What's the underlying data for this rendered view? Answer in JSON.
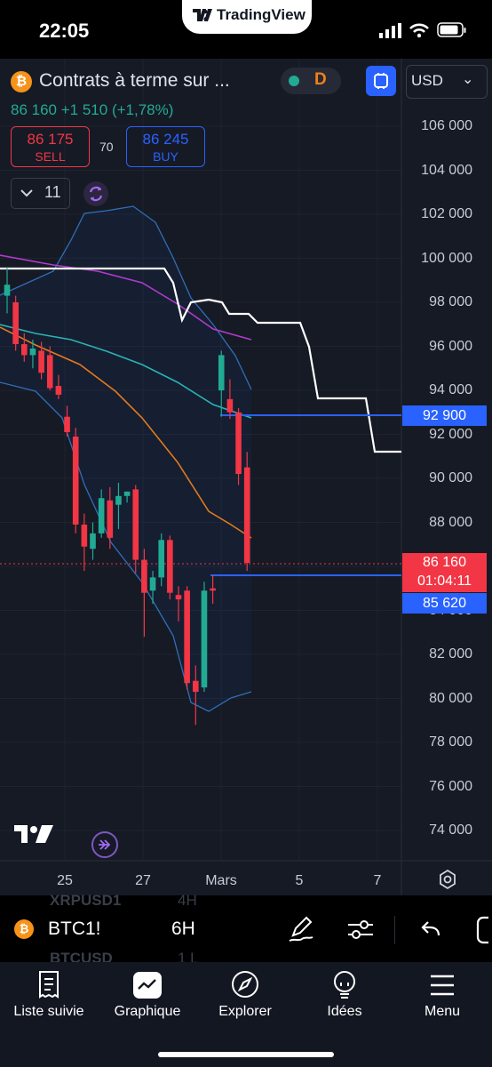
{
  "status_bar": {
    "time": "22:05",
    "app_banner": "TradingView"
  },
  "header": {
    "symbol_title": "Contrats à terme sur ...",
    "session_badge": "D",
    "currency": "USD",
    "last_price": "86 160",
    "change": "+1 510",
    "change_pct": "(+1,78%)",
    "sell_price": "86 175",
    "sell_label": "SELL",
    "spread": "70",
    "buy_price": "86 245",
    "buy_label": "BUY",
    "indicator_count": "11"
  },
  "price_axis": {
    "labels": [
      "106 000",
      "104 000",
      "102 000",
      "100 000",
      "98 000",
      "96 000",
      "94 000",
      "92 000",
      "90 000",
      "88 000",
      "86 000",
      "84 000",
      "82 000",
      "80 000",
      "78 000",
      "76 000",
      "74 000"
    ]
  },
  "price_tags": {
    "upper_line": "92 900",
    "current_price": "86 160",
    "countdown": "01:04:11",
    "lower_line": "85 620"
  },
  "time_axis": {
    "labels": [
      "25",
      "27",
      "Mars",
      "5",
      "7"
    ]
  },
  "toolbar": {
    "symbol": "BTC1!",
    "interval": "6H",
    "ghost_symbol_1": "XRPUSD1",
    "ghost_interval_1": "4H",
    "ghost_symbol_2": "BTCUSD",
    "ghost_interval_2": "1 L"
  },
  "nav": {
    "watchlist": "Liste suivie",
    "chart": "Graphique",
    "explore": "Explorer",
    "ideas": "Idées",
    "menu": "Menu"
  },
  "colors": {
    "up": "#22ab94",
    "down": "#f23645",
    "accent": "#2962ff",
    "bg": "#161a25",
    "btc": "#f7931a",
    "badge": "#f57f17"
  },
  "candles": [
    {
      "o": 98300,
      "h": 99600,
      "l": 97500,
      "c": 98800
    },
    {
      "o": 98000,
      "h": 98300,
      "l": 95800,
      "c": 96100
    },
    {
      "o": 96100,
      "h": 96600,
      "l": 95300,
      "c": 95600
    },
    {
      "o": 95600,
      "h": 96300,
      "l": 95000,
      "c": 95900
    },
    {
      "o": 95800,
      "h": 96200,
      "l": 94500,
      "c": 94800
    },
    {
      "o": 95600,
      "h": 96000,
      "l": 94000,
      "c": 94100
    },
    {
      "o": 94200,
      "h": 94700,
      "l": 93600,
      "c": 93800
    },
    {
      "o": 92800,
      "h": 93300,
      "l": 91900,
      "c": 92100
    },
    {
      "o": 91900,
      "h": 92300,
      "l": 87500,
      "c": 87900
    },
    {
      "o": 87900,
      "h": 88400,
      "l": 85800,
      "c": 86900
    },
    {
      "o": 86800,
      "h": 88000,
      "l": 86300,
      "c": 87500
    },
    {
      "o": 87500,
      "h": 89500,
      "l": 87300,
      "c": 89100
    },
    {
      "o": 89000,
      "h": 89600,
      "l": 86800,
      "c": 87300
    },
    {
      "o": 88800,
      "h": 89800,
      "l": 87700,
      "c": 89200
    },
    {
      "o": 89200,
      "h": 89400,
      "l": 88900,
      "c": 89400
    },
    {
      "o": 89500,
      "h": 89700,
      "l": 85700,
      "c": 86300
    },
    {
      "o": 86300,
      "h": 86800,
      "l": 82800,
      "c": 84800
    },
    {
      "o": 84900,
      "h": 85800,
      "l": 84300,
      "c": 85500
    },
    {
      "o": 85500,
      "h": 87500,
      "l": 85100,
      "c": 87200
    },
    {
      "o": 87200,
      "h": 87400,
      "l": 84500,
      "c": 84800
    },
    {
      "o": 84700,
      "h": 85100,
      "l": 83500,
      "c": 84500
    },
    {
      "o": 84900,
      "h": 85100,
      "l": 80400,
      "c": 80700
    },
    {
      "o": 80800,
      "h": 81500,
      "l": 78800,
      "c": 80300
    },
    {
      "o": 80500,
      "h": 85300,
      "l": 80300,
      "c": 84900
    },
    {
      "o": 85000,
      "h": 85600,
      "l": 84300,
      "c": 84900
    },
    {
      "o": 94000,
      "h": 95800,
      "l": 92800,
      "c": 95600
    },
    {
      "o": 93600,
      "h": 94500,
      "l": 92700,
      "c": 93000
    },
    {
      "o": 93000,
      "h": 93200,
      "l": 89700,
      "c": 90200
    },
    {
      "o": 90500,
      "h": 91200,
      "l": 85800,
      "c": 86160
    }
  ]
}
